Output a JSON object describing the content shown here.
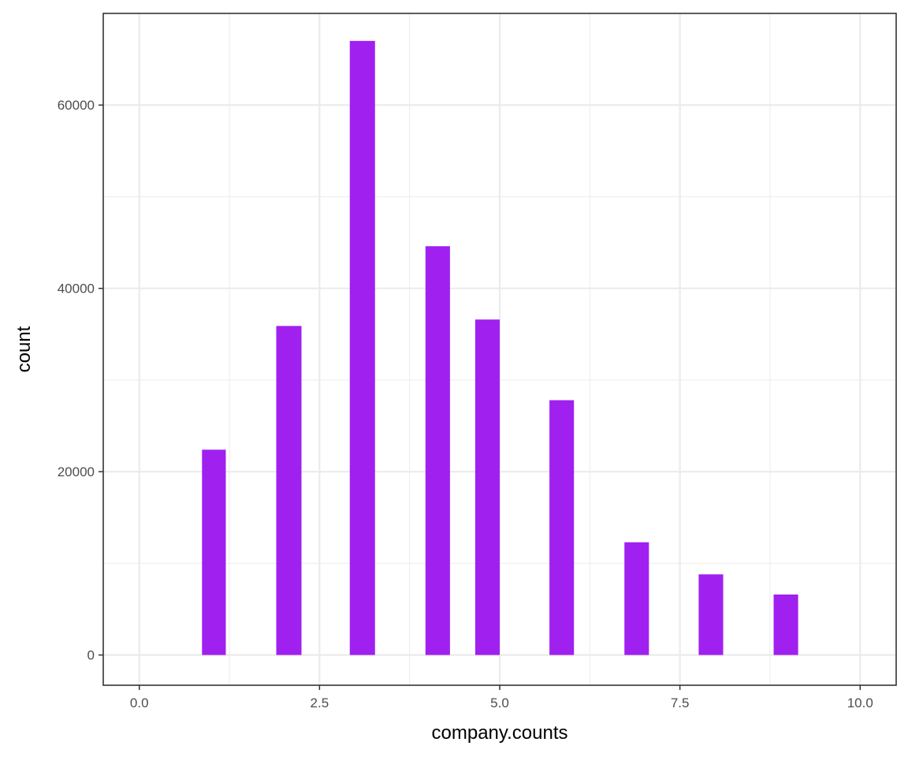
{
  "chart_data": {
    "type": "bar",
    "xlabel": "company.counts",
    "ylabel": "count",
    "xlim": [
      -0.5,
      10.5
    ],
    "ylim": [
      -3300,
      70000
    ],
    "x_ticks": [
      0.0,
      2.5,
      5.0,
      7.5,
      10.0
    ],
    "x_tick_labels": [
      "0.0",
      "2.5",
      "5.0",
      "7.5",
      "10.0"
    ],
    "y_ticks": [
      0,
      20000,
      40000,
      60000
    ],
    "y_tick_labels": [
      "0",
      "20000",
      "40000",
      "60000"
    ],
    "grid": true,
    "bar_color": "#A020F0",
    "bars": [
      {
        "x_start": 0.87,
        "x_end": 1.2,
        "value": 22400
      },
      {
        "x_start": 1.9,
        "x_end": 2.25,
        "value": 35900
      },
      {
        "x_start": 2.92,
        "x_end": 3.27,
        "value": 67000
      },
      {
        "x_start": 3.97,
        "x_end": 4.31,
        "value": 44600
      },
      {
        "x_start": 4.66,
        "x_end": 5.0,
        "value": 36600
      },
      {
        "x_start": 5.69,
        "x_end": 6.03,
        "value": 27800
      },
      {
        "x_start": 6.73,
        "x_end": 7.07,
        "value": 12300
      },
      {
        "x_start": 7.76,
        "x_end": 8.1,
        "value": 8800
      },
      {
        "x_start": 8.8,
        "x_end": 9.14,
        "value": 6600
      }
    ]
  }
}
